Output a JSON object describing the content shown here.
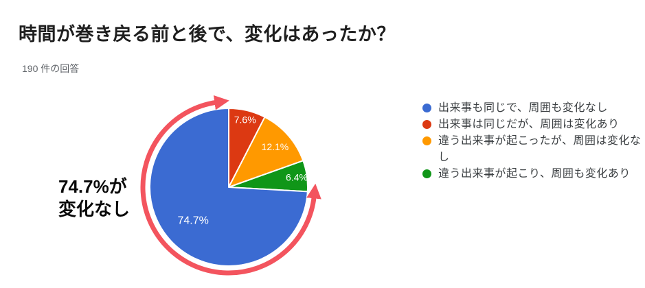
{
  "header": {
    "title": "時間が巻き戻る前と後で、変化はあったか？",
    "response_count": "190 件の回答"
  },
  "annotation": {
    "line1": "74.7%が",
    "line2": "変化なし",
    "arrow_color": "#f3545e"
  },
  "chart_data": {
    "type": "pie",
    "title": "時間が巻き戻る前と後で、変化はあったか？",
    "subtitle": "190 件の回答",
    "total_responses": 190,
    "start_angle_deg": 0,
    "direction": "clockwise",
    "legend_position": "right",
    "slices": [
      {
        "label": "出来事は同じだが、周囲は変化あり",
        "percent": 7.6,
        "data_label": "7.6%",
        "color": "#dc3912",
        "label_radius_frac": 0.88
      },
      {
        "label": "違う出来事が起こったが、周囲は変化なし",
        "percent": 12.1,
        "data_label": "12.1%",
        "color": "#ff9900",
        "label_radius_frac": 0.78
      },
      {
        "label": "違う出来事が起こり、周囲も変化あり",
        "percent": 6.4,
        "data_label": "6.4%",
        "color": "#109618",
        "label_radius_frac": 0.87
      },
      {
        "label": "出来事も同じで、周囲も変化なし",
        "percent": 74.7,
        "data_label": "74.7%",
        "color": "#3b6bd2",
        "label_radius_frac": 0.62
      }
    ]
  },
  "legend": {
    "items": [
      {
        "label": "出来事も同じで、周囲も変化なし",
        "color": "#3b6bd2"
      },
      {
        "label": "出来事は同じだが、周囲は変化あり",
        "color": "#dc3912"
      },
      {
        "label": "違う出来事が起こったが、周囲は変化なし",
        "color": "#ff9900"
      },
      {
        "label": "違う出来事が起こり、周囲も変化あり",
        "color": "#109618"
      }
    ]
  }
}
